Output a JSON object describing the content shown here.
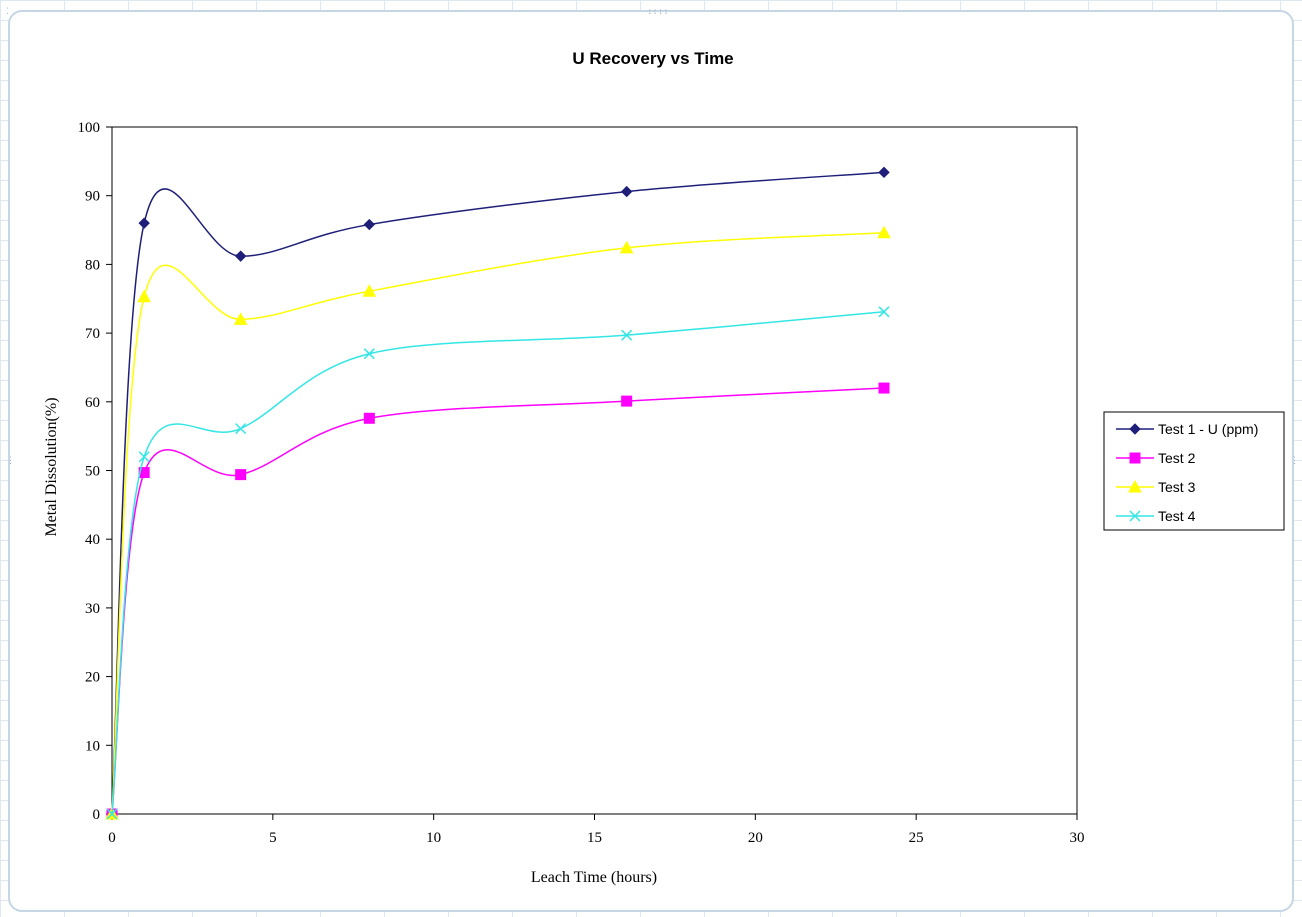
{
  "chart_data": {
    "type": "line",
    "title": "U Recovery vs Time",
    "xlabel": "Leach Time (hours)",
    "ylabel": "Metal Dissolution(%)",
    "xlim": [
      0,
      30
    ],
    "ylim": [
      0,
      100
    ],
    "xticks": [
      0,
      5,
      10,
      15,
      20,
      25,
      30
    ],
    "yticks": [
      0,
      10,
      20,
      30,
      40,
      50,
      60,
      70,
      80,
      90,
      100
    ],
    "grid": false,
    "smooth": true,
    "legend_position": "right",
    "x": [
      0,
      1,
      4,
      8,
      16,
      24
    ],
    "series": [
      {
        "name": "Test 1 - U (ppm)",
        "marker": "diamond",
        "color": "#1f1f7a",
        "values": [
          0,
          86,
          81.2,
          85.8,
          90.6,
          93.4
        ]
      },
      {
        "name": "Test 2",
        "marker": "square",
        "color": "#ff00ff",
        "values": [
          0,
          49.7,
          49.4,
          57.6,
          60.1,
          62.0
        ]
      },
      {
        "name": "Test 3",
        "marker": "triangle",
        "color": "#ffff00",
        "values": [
          0,
          75.3,
          72.0,
          76.1,
          82.4,
          84.6
        ]
      },
      {
        "name": "Test 4",
        "marker": "x",
        "color": "#33e6e6",
        "values": [
          0,
          52.0,
          56.1,
          67.0,
          69.7,
          73.1
        ]
      }
    ]
  }
}
